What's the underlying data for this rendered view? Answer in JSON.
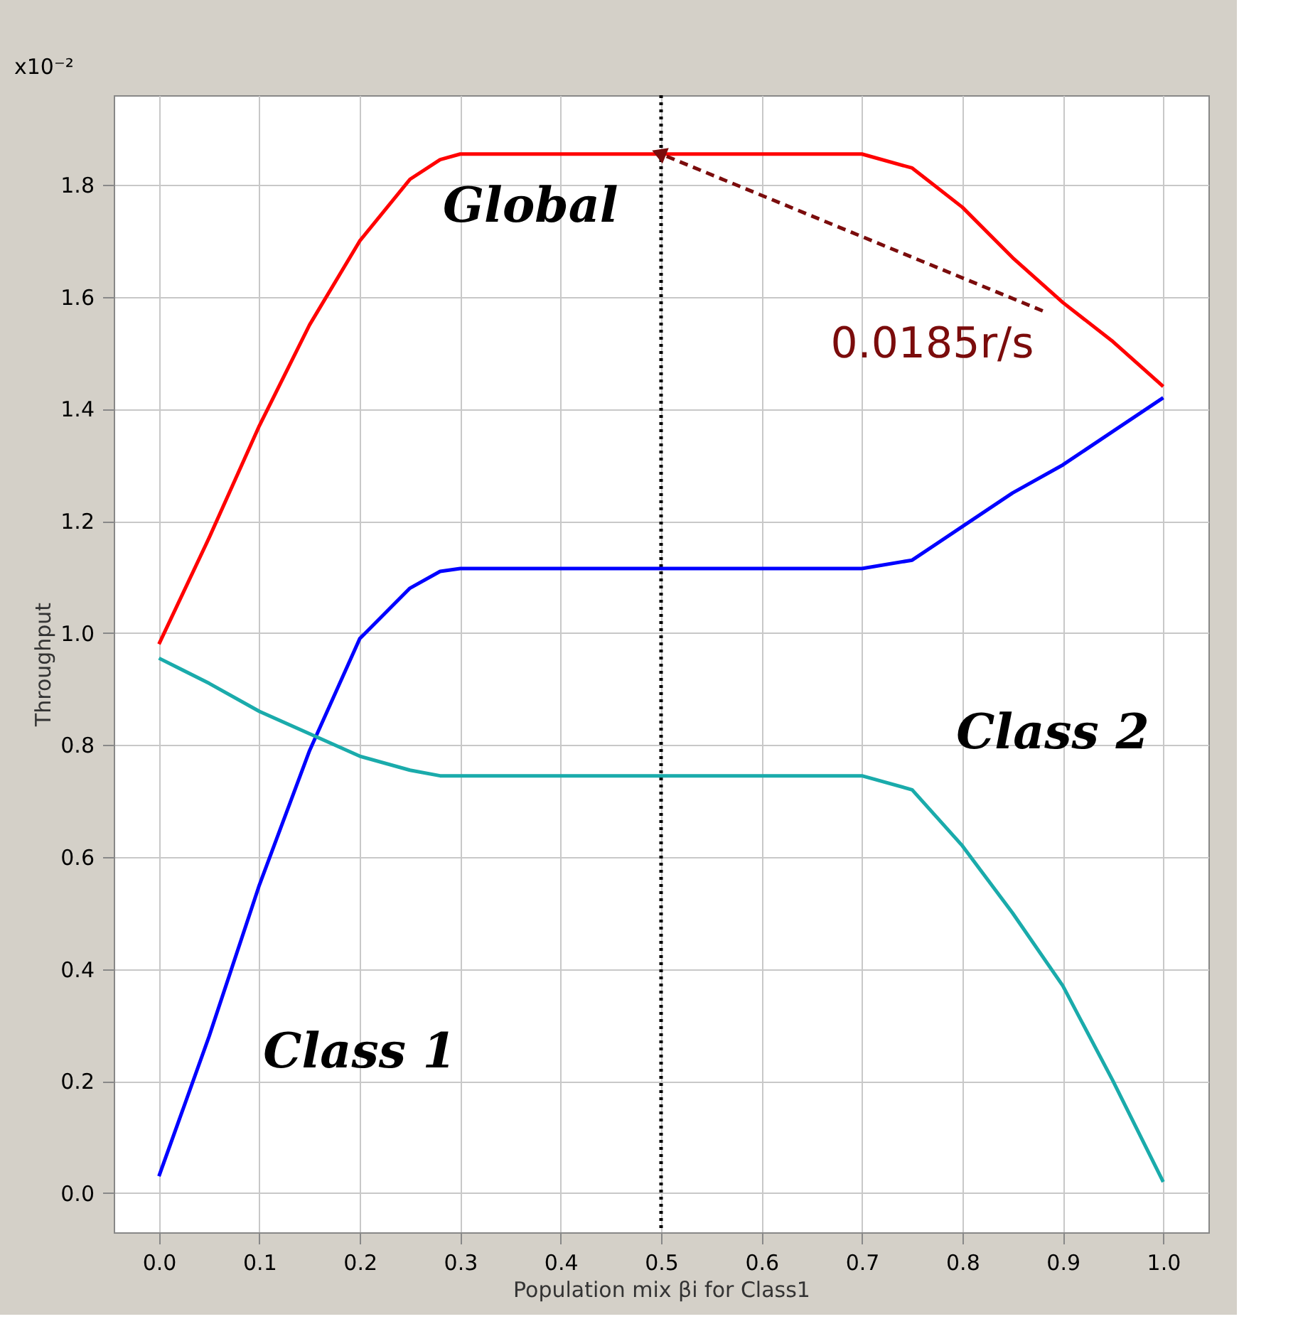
{
  "chart_data": {
    "type": "line",
    "xlabel": "Population mix βi for Class1",
    "ylabel": "Throughput",
    "x": [
      0,
      0.05,
      0.1,
      0.15,
      0.2,
      0.25,
      0.28,
      0.3,
      0.7,
      0.75,
      0.8,
      0.85,
      0.9,
      0.95,
      1.0
    ],
    "series": [
      {
        "name": "Global",
        "color": "#ff0000",
        "values": [
          0.98,
          1.17,
          1.37,
          1.55,
          1.7,
          1.81,
          1.845,
          1.855,
          1.855,
          1.83,
          1.76,
          1.67,
          1.59,
          1.52,
          1.44
        ]
      },
      {
        "name": "Class 1",
        "color": "#0000ff",
        "values": [
          0.03,
          0.28,
          0.55,
          0.79,
          0.99,
          1.08,
          1.11,
          1.115,
          1.115,
          1.13,
          1.19,
          1.25,
          1.3,
          1.36,
          1.42
        ]
      },
      {
        "name": "Class 2",
        "color": "#1aabab",
        "values": [
          0.955,
          0.91,
          0.86,
          0.82,
          0.78,
          0.755,
          0.745,
          0.745,
          0.745,
          0.72,
          0.62,
          0.5,
          0.37,
          0.2,
          0.02
        ]
      }
    ],
    "xlim": [
      -0.045,
      1.045
    ],
    "ylim": [
      -0.07,
      1.96
    ],
    "xticks": [
      {
        "value": 0,
        "label": "0.0"
      },
      0.1,
      0.2,
      0.3,
      0.4,
      0.5,
      0.6,
      0.7,
      0.8,
      0.9,
      {
        "value": 1,
        "label": "1.0"
      }
    ],
    "yticks": [
      {
        "value": 0,
        "label": "0.0"
      },
      0.2,
      0.4,
      0.6,
      0.8,
      {
        "value": 1,
        "label": "1.0"
      },
      1.2,
      1.4,
      1.6,
      1.8
    ],
    "ref_lines": [
      {
        "axis": "x",
        "value": 0.5,
        "color": "#000000",
        "line_style": "dotted"
      }
    ],
    "annotations": [
      "x10⁻²",
      {
        "text": "0.0185r/s",
        "x": 0.5,
        "y": 1.855
      }
    ],
    "grid": true,
    "legend": false,
    "marker": "none",
    "line_style": "solid"
  }
}
